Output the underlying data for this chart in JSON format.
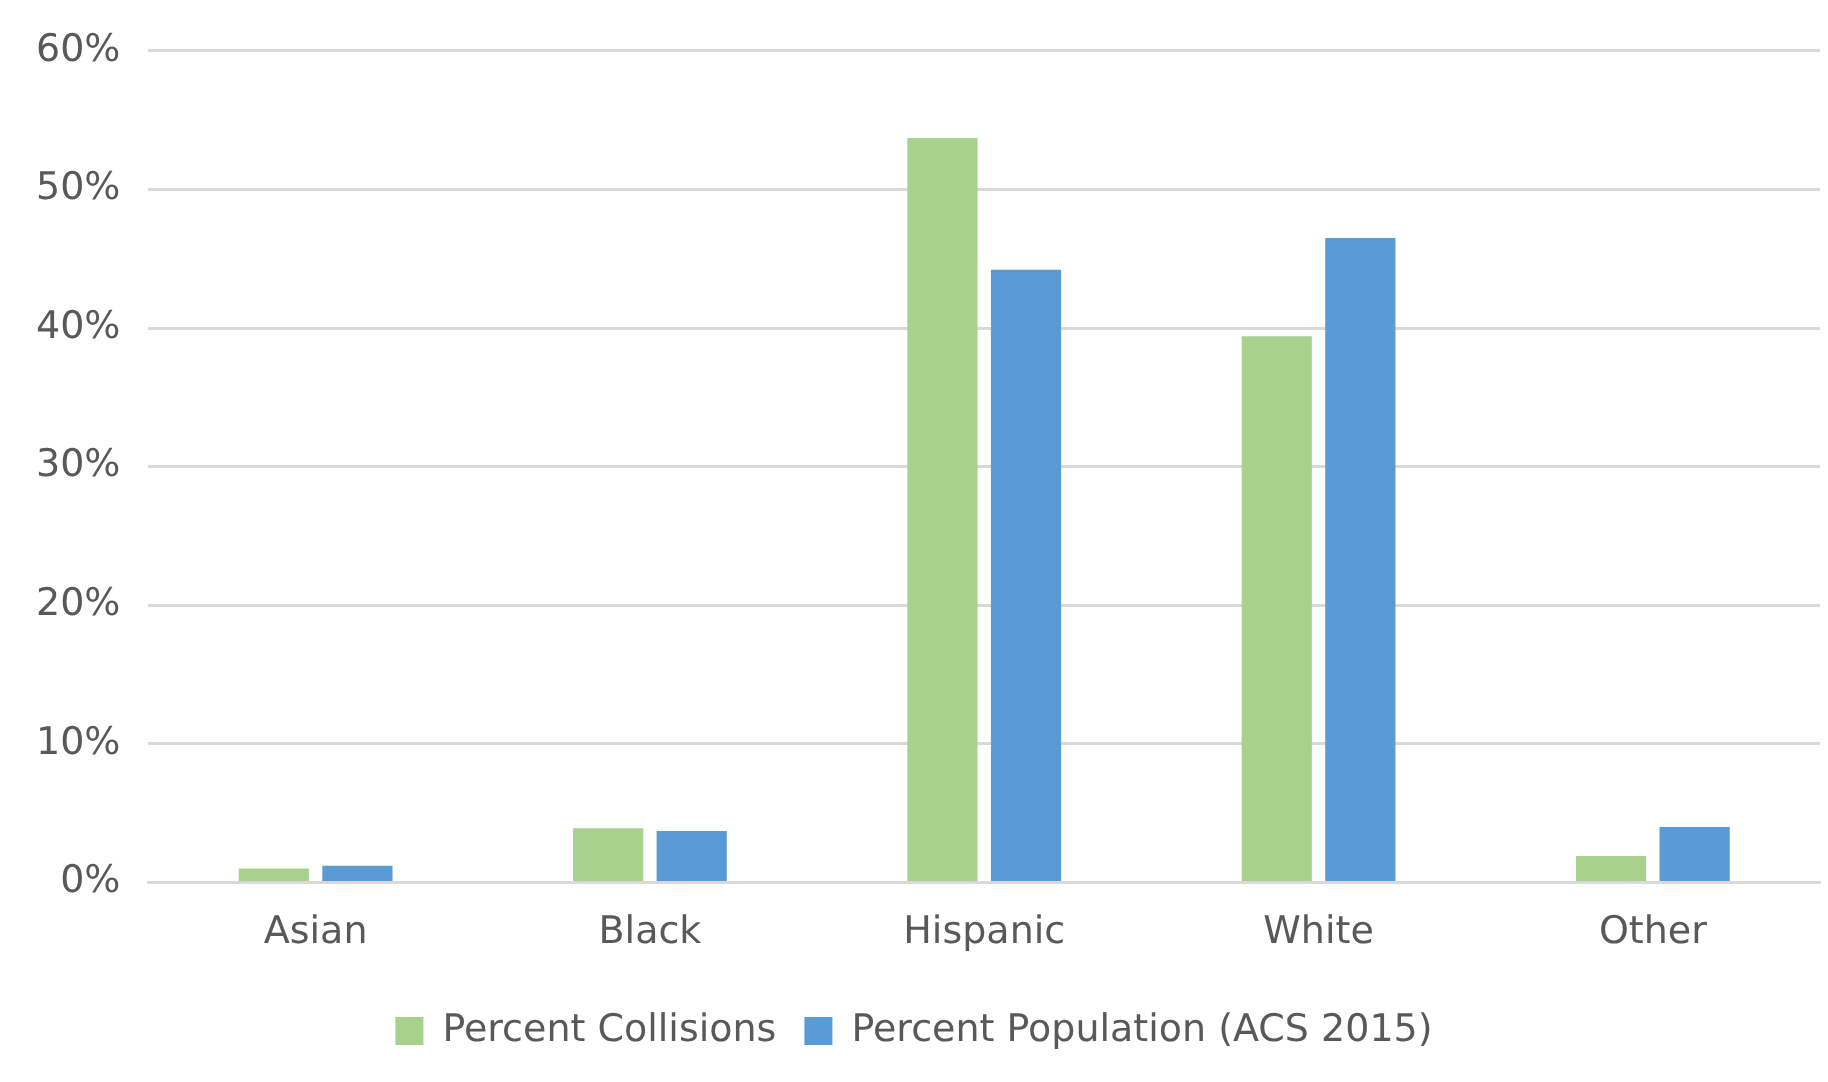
{
  "chart_data": {
    "type": "bar",
    "categories": [
      "Asian",
      "Black",
      "Hispanic",
      "White",
      "Other"
    ],
    "series": [
      {
        "name": "Percent Collisions",
        "color": "#a9d18e",
        "values": [
          1.0,
          3.9,
          53.7,
          39.4,
          1.9
        ]
      },
      {
        "name": "Percent Population (ACS 2015)",
        "color": "#5b9bd5",
        "values": [
          1.2,
          3.7,
          44.2,
          46.5,
          4.0
        ]
      }
    ],
    "ylim": [
      0,
      60
    ],
    "yticks": [
      {
        "value": 0,
        "label": "0%"
      },
      {
        "value": 10,
        "label": "10%"
      },
      {
        "value": 20,
        "label": "20%"
      },
      {
        "value": 30,
        "label": "30%"
      },
      {
        "value": 40,
        "label": "40%"
      },
      {
        "value": 50,
        "label": "50%"
      },
      {
        "value": 60,
        "label": "60%"
      }
    ],
    "grid": "y",
    "legend": "bottom"
  }
}
